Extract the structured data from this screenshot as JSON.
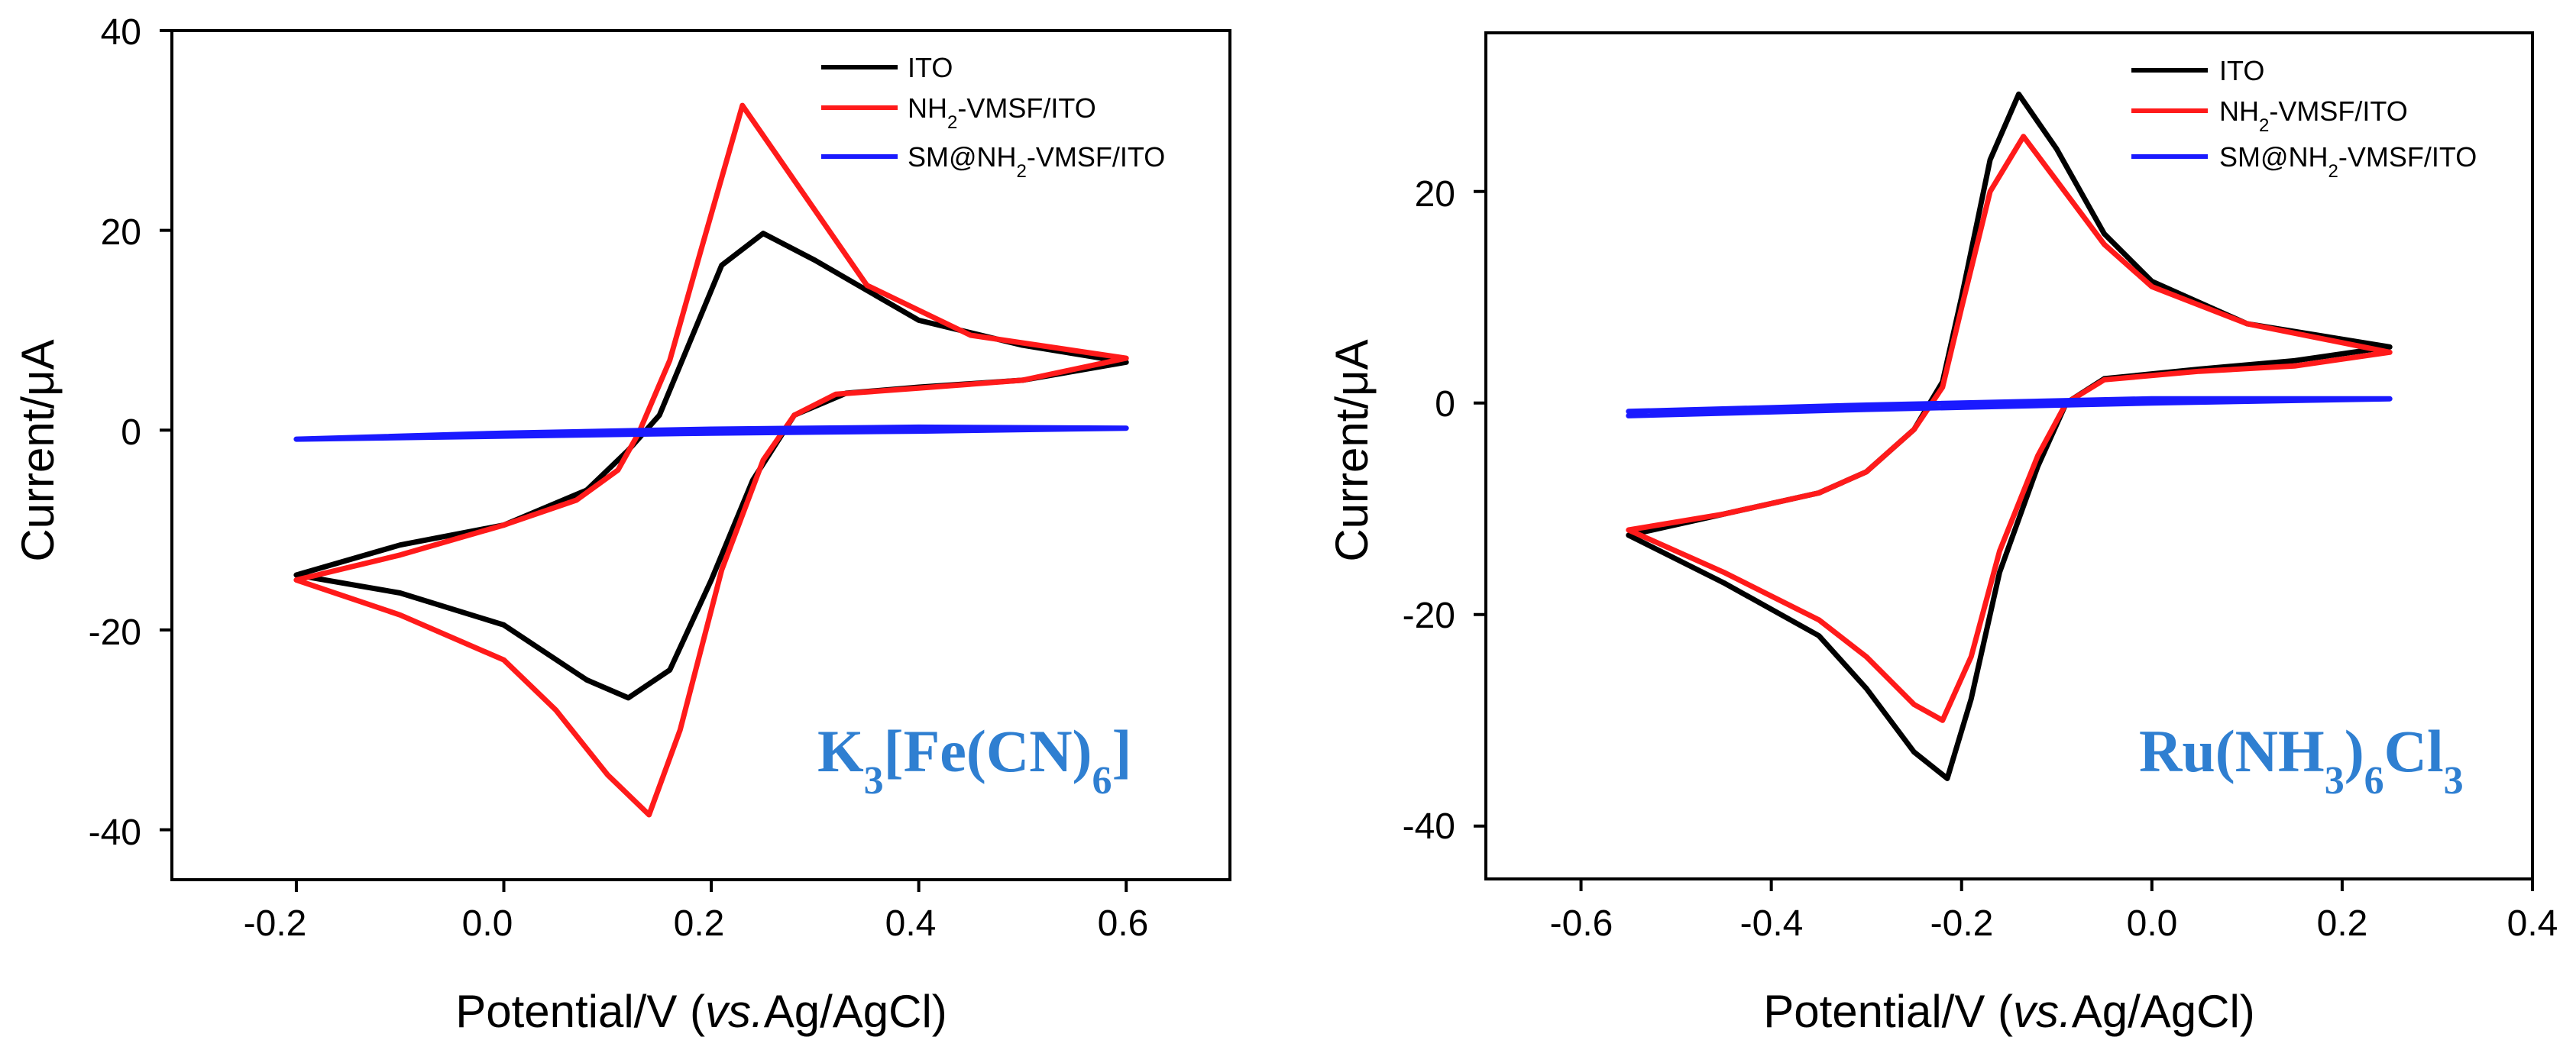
{
  "chart_data": [
    {
      "type": "line",
      "xlabel": "Potential/V (vs.Ag/AgCl)",
      "ylabel": "Current/μA",
      "xlim": [
        -0.32,
        0.7
      ],
      "ylim": [
        -45,
        40
      ],
      "xticks": [
        -0.2,
        0.0,
        0.2,
        0.4,
        0.6
      ],
      "xtick_labels": [
        "-0.2",
        "0.0",
        "0.2",
        "0.4",
        "0.6"
      ],
      "yticks": [
        -40,
        -20,
        0,
        20,
        40
      ],
      "ytick_labels": [
        "-40",
        "-20",
        "0",
        "20",
        "40"
      ],
      "annotation": "K3[Fe(CN)6]",
      "legend_position": "top-right",
      "series": [
        {
          "name": "ITO",
          "color": "#000000",
          "points": [
            [
              -0.2,
              -14.5
            ],
            [
              -0.1,
              -11.5
            ],
            [
              0.0,
              -9.5
            ],
            [
              0.08,
              -6
            ],
            [
              0.12,
              -2
            ],
            [
              0.15,
              1.5
            ],
            [
              0.18,
              9
            ],
            [
              0.21,
              16.5
            ],
            [
              0.25,
              19.7
            ],
            [
              0.3,
              17
            ],
            [
              0.4,
              11
            ],
            [
              0.5,
              8.5
            ],
            [
              0.6,
              6.8
            ],
            [
              0.5,
              5
            ],
            [
              0.4,
              4.3
            ],
            [
              0.33,
              3.7
            ],
            [
              0.28,
              1.5
            ],
            [
              0.24,
              -5
            ],
            [
              0.2,
              -15
            ],
            [
              0.16,
              -24
            ],
            [
              0.12,
              -26.8
            ],
            [
              0.08,
              -25
            ],
            [
              0.0,
              -19.5
            ],
            [
              -0.1,
              -16.3
            ],
            [
              -0.2,
              -14.5
            ]
          ]
        },
        {
          "name": "NH2-VMSF/ITO",
          "color": "#ff1a1a",
          "points": [
            [
              -0.2,
              -15
            ],
            [
              -0.1,
              -12.5
            ],
            [
              0.0,
              -9.5
            ],
            [
              0.07,
              -7
            ],
            [
              0.11,
              -4
            ],
            [
              0.13,
              -0.3
            ],
            [
              0.16,
              7
            ],
            [
              0.19,
              18
            ],
            [
              0.23,
              32.5
            ],
            [
              0.28,
              25
            ],
            [
              0.35,
              14.5
            ],
            [
              0.45,
              9.5
            ],
            [
              0.6,
              7.2
            ],
            [
              0.5,
              5
            ],
            [
              0.4,
              4.2
            ],
            [
              0.32,
              3.6
            ],
            [
              0.28,
              1.5
            ],
            [
              0.25,
              -3
            ],
            [
              0.21,
              -14
            ],
            [
              0.17,
              -30
            ],
            [
              0.14,
              -38.5
            ],
            [
              0.1,
              -34.5
            ],
            [
              0.05,
              -28
            ],
            [
              0.0,
              -23
            ],
            [
              -0.1,
              -18.5
            ],
            [
              -0.2,
              -15
            ]
          ]
        },
        {
          "name": "SM@NH2-VMSF/ITO",
          "color": "#1a1aff",
          "points": [
            [
              -0.2,
              -0.9
            ],
            [
              0.0,
              -0.3
            ],
            [
              0.2,
              0.1
            ],
            [
              0.4,
              0.3
            ],
            [
              0.6,
              0.2
            ],
            [
              0.4,
              -0.1
            ],
            [
              0.2,
              -0.3
            ],
            [
              0.0,
              -0.6
            ],
            [
              -0.2,
              -0.9
            ]
          ]
        }
      ]
    },
    {
      "type": "line",
      "xlabel": "Potential/V (vs.Ag/AgCl)",
      "ylabel": "Current/μA",
      "xlim": [
        -0.7,
        0.4
      ],
      "ylim": [
        -45,
        35
      ],
      "xticks": [
        -0.6,
        -0.4,
        -0.2,
        0.0,
        0.2,
        0.4
      ],
      "xtick_labels": [
        "-0.6",
        "-0.4",
        "-0.2",
        "0.0",
        "0.2",
        "0.4"
      ],
      "yticks": [
        -40,
        -20,
        0,
        20
      ],
      "ytick_labels": [
        "-40",
        "-20",
        "0",
        "20"
      ],
      "annotation": "Ru(NH3)6Cl3",
      "legend_position": "top-right",
      "series": [
        {
          "name": "ITO",
          "color": "#000000",
          "points": [
            [
              -0.55,
              -12.5
            ],
            [
              -0.45,
              -10.5
            ],
            [
              -0.35,
              -8.5
            ],
            [
              -0.3,
              -6.5
            ],
            [
              -0.25,
              -2.5
            ],
            [
              -0.22,
              2
            ],
            [
              -0.2,
              10
            ],
            [
              -0.17,
              23
            ],
            [
              -0.14,
              29.2
            ],
            [
              -0.1,
              24
            ],
            [
              -0.05,
              16
            ],
            [
              0.0,
              11.5
            ],
            [
              0.1,
              7.5
            ],
            [
              0.25,
              5.3
            ],
            [
              0.15,
              4
            ],
            [
              0.05,
              3.2
            ],
            [
              -0.05,
              2.3
            ],
            [
              -0.09,
              0
            ],
            [
              -0.12,
              -6
            ],
            [
              -0.16,
              -16
            ],
            [
              -0.19,
              -28
            ],
            [
              -0.215,
              -35.5
            ],
            [
              -0.25,
              -33
            ],
            [
              -0.3,
              -27
            ],
            [
              -0.35,
              -22
            ],
            [
              -0.45,
              -17
            ],
            [
              -0.55,
              -12.5
            ]
          ]
        },
        {
          "name": "NH2-VMSF/ITO",
          "color": "#ff1a1a",
          "points": [
            [
              -0.55,
              -12
            ],
            [
              -0.45,
              -10.5
            ],
            [
              -0.35,
              -8.5
            ],
            [
              -0.3,
              -6.5
            ],
            [
              -0.25,
              -2.5
            ],
            [
              -0.22,
              1.5
            ],
            [
              -0.2,
              9
            ],
            [
              -0.17,
              20
            ],
            [
              -0.135,
              25.2
            ],
            [
              -0.1,
              21
            ],
            [
              -0.05,
              15
            ],
            [
              0.0,
              11
            ],
            [
              0.1,
              7.5
            ],
            [
              0.25,
              4.8
            ],
            [
              0.15,
              3.5
            ],
            [
              0.05,
              3
            ],
            [
              -0.05,
              2.2
            ],
            [
              -0.09,
              0
            ],
            [
              -0.12,
              -5
            ],
            [
              -0.16,
              -14
            ],
            [
              -0.19,
              -24
            ],
            [
              -0.22,
              -30
            ],
            [
              -0.25,
              -28.5
            ],
            [
              -0.3,
              -24
            ],
            [
              -0.35,
              -20.5
            ],
            [
              -0.45,
              -16
            ],
            [
              -0.55,
              -12
            ]
          ]
        },
        {
          "name": "SM@NH2-VMSF/ITO",
          "color": "#1a1aff",
          "points": [
            [
              -0.55,
              -0.8
            ],
            [
              -0.3,
              -0.2
            ],
            [
              0.0,
              0.4
            ],
            [
              0.25,
              0.4
            ],
            [
              0.0,
              0.0
            ],
            [
              -0.3,
              -0.6
            ],
            [
              -0.55,
              -1.2
            ]
          ]
        }
      ]
    }
  ]
}
